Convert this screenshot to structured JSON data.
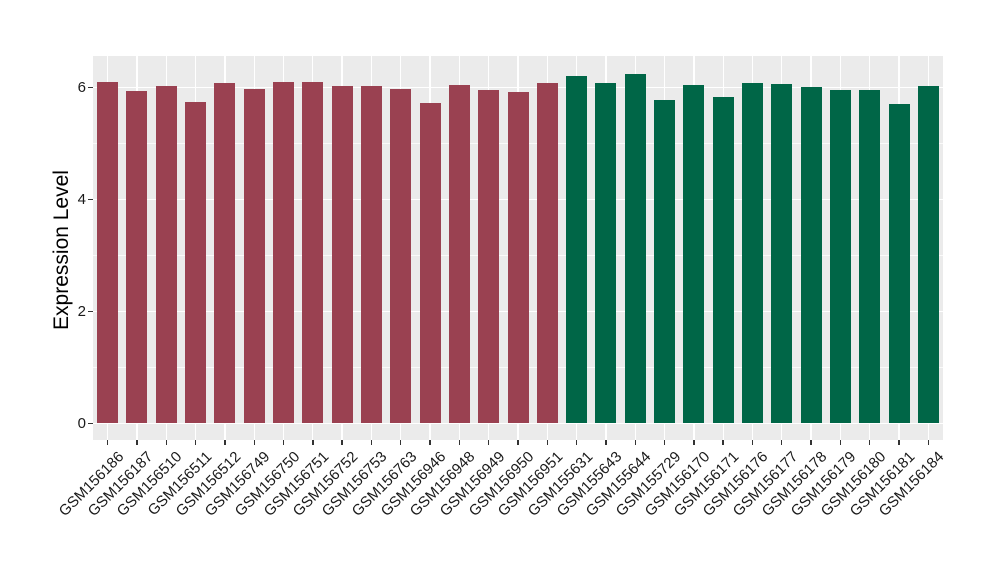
{
  "chart_data": {
    "type": "bar",
    "title": "",
    "xlabel": "",
    "ylabel": "Expression Level",
    "ylim": [
      0,
      6.6
    ],
    "y_ticks": [
      0,
      2,
      4,
      6
    ],
    "y_minor_ticks": [
      1,
      3,
      5
    ],
    "grid": "on",
    "legend_position": "none",
    "panel_background": "#EBEBEB",
    "gridline_color": "#FFFFFF",
    "axis_text_color": "#1A1A1A",
    "group_colors": {
      "group1": "#9A4151",
      "group2": "#006647"
    },
    "bars": [
      {
        "label": "GSM156186",
        "value": 6.1,
        "group": "group1"
      },
      {
        "label": "GSM156187",
        "value": 5.94,
        "group": "group1"
      },
      {
        "label": "GSM156510",
        "value": 6.03,
        "group": "group1"
      },
      {
        "label": "GSM156511",
        "value": 5.75,
        "group": "group1"
      },
      {
        "label": "GSM156512",
        "value": 6.08,
        "group": "group1"
      },
      {
        "label": "GSM156749",
        "value": 5.97,
        "group": "group1"
      },
      {
        "label": "GSM156750",
        "value": 6.1,
        "group": "group1"
      },
      {
        "label": "GSM156751",
        "value": 6.1,
        "group": "group1"
      },
      {
        "label": "GSM156752",
        "value": 6.03,
        "group": "group1"
      },
      {
        "label": "GSM156753",
        "value": 6.03,
        "group": "group1"
      },
      {
        "label": "GSM156763",
        "value": 5.97,
        "group": "group1"
      },
      {
        "label": "GSM156946",
        "value": 5.72,
        "group": "group1"
      },
      {
        "label": "GSM156948",
        "value": 6.04,
        "group": "group1"
      },
      {
        "label": "GSM156949",
        "value": 5.95,
        "group": "group1"
      },
      {
        "label": "GSM156950",
        "value": 5.93,
        "group": "group1"
      },
      {
        "label": "GSM156951",
        "value": 6.08,
        "group": "group1"
      },
      {
        "label": "GSM155631",
        "value": 6.21,
        "group": "group2"
      },
      {
        "label": "GSM155643",
        "value": 6.09,
        "group": "group2"
      },
      {
        "label": "GSM155644",
        "value": 6.24,
        "group": "group2"
      },
      {
        "label": "GSM155729",
        "value": 5.78,
        "group": "group2"
      },
      {
        "label": "GSM156170",
        "value": 6.05,
        "group": "group2"
      },
      {
        "label": "GSM156171",
        "value": 5.83,
        "group": "group2"
      },
      {
        "label": "GSM156176",
        "value": 6.09,
        "group": "group2"
      },
      {
        "label": "GSM156177",
        "value": 6.07,
        "group": "group2"
      },
      {
        "label": "GSM156178",
        "value": 6.02,
        "group": "group2"
      },
      {
        "label": "GSM156179",
        "value": 5.96,
        "group": "group2"
      },
      {
        "label": "GSM156180",
        "value": 5.96,
        "group": "group2"
      },
      {
        "label": "GSM156181",
        "value": 5.71,
        "group": "group2"
      },
      {
        "label": "GSM156184",
        "value": 6.03,
        "group": "group2"
      }
    ]
  }
}
